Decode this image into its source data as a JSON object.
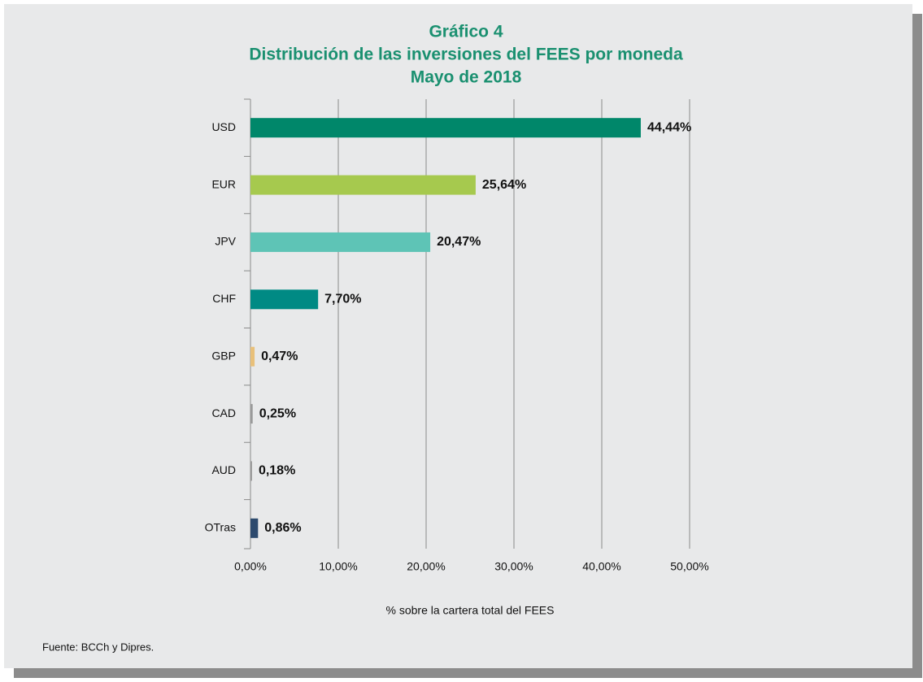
{
  "chart_data": {
    "type": "bar",
    "orientation": "horizontal",
    "title": "Gráfico 4",
    "subtitle": [
      "Distribución de las inversiones del FEES por moneda",
      "Mayo de 2018"
    ],
    "categories": [
      "USD",
      "EUR",
      "JPV",
      "CHF",
      "GBP",
      "CAD",
      "AUD",
      "OTras"
    ],
    "values": [
      44.44,
      25.64,
      20.47,
      7.7,
      0.47,
      0.25,
      0.18,
      0.86
    ],
    "value_labels": [
      "44,44%",
      "25,64%",
      "20,47%",
      "7,70%",
      "0,47%",
      "0,25%",
      "0,18%",
      "0,86%"
    ],
    "colors": [
      "#00876a",
      "#a6c94e",
      "#5ec4b6",
      "#008a84",
      "#e8c07a",
      "#9a9a9a",
      "#9a9a9a",
      "#2d4a6e"
    ],
    "xlim": [
      0,
      50
    ],
    "xticks": [
      {
        "value": 0,
        "label": "0,00%"
      },
      {
        "value": 10,
        "label": "10,00%"
      },
      {
        "value": 20,
        "label": "20,00%"
      },
      {
        "value": 30,
        "label": "30,00%"
      },
      {
        "value": 40,
        "label": "40,00%"
      },
      {
        "value": 50,
        "label": "50,00%"
      }
    ],
    "xlabel": "% sobre la cartera total del FEES",
    "grid": true,
    "source": "Fuente: BCCh y Dipres."
  }
}
